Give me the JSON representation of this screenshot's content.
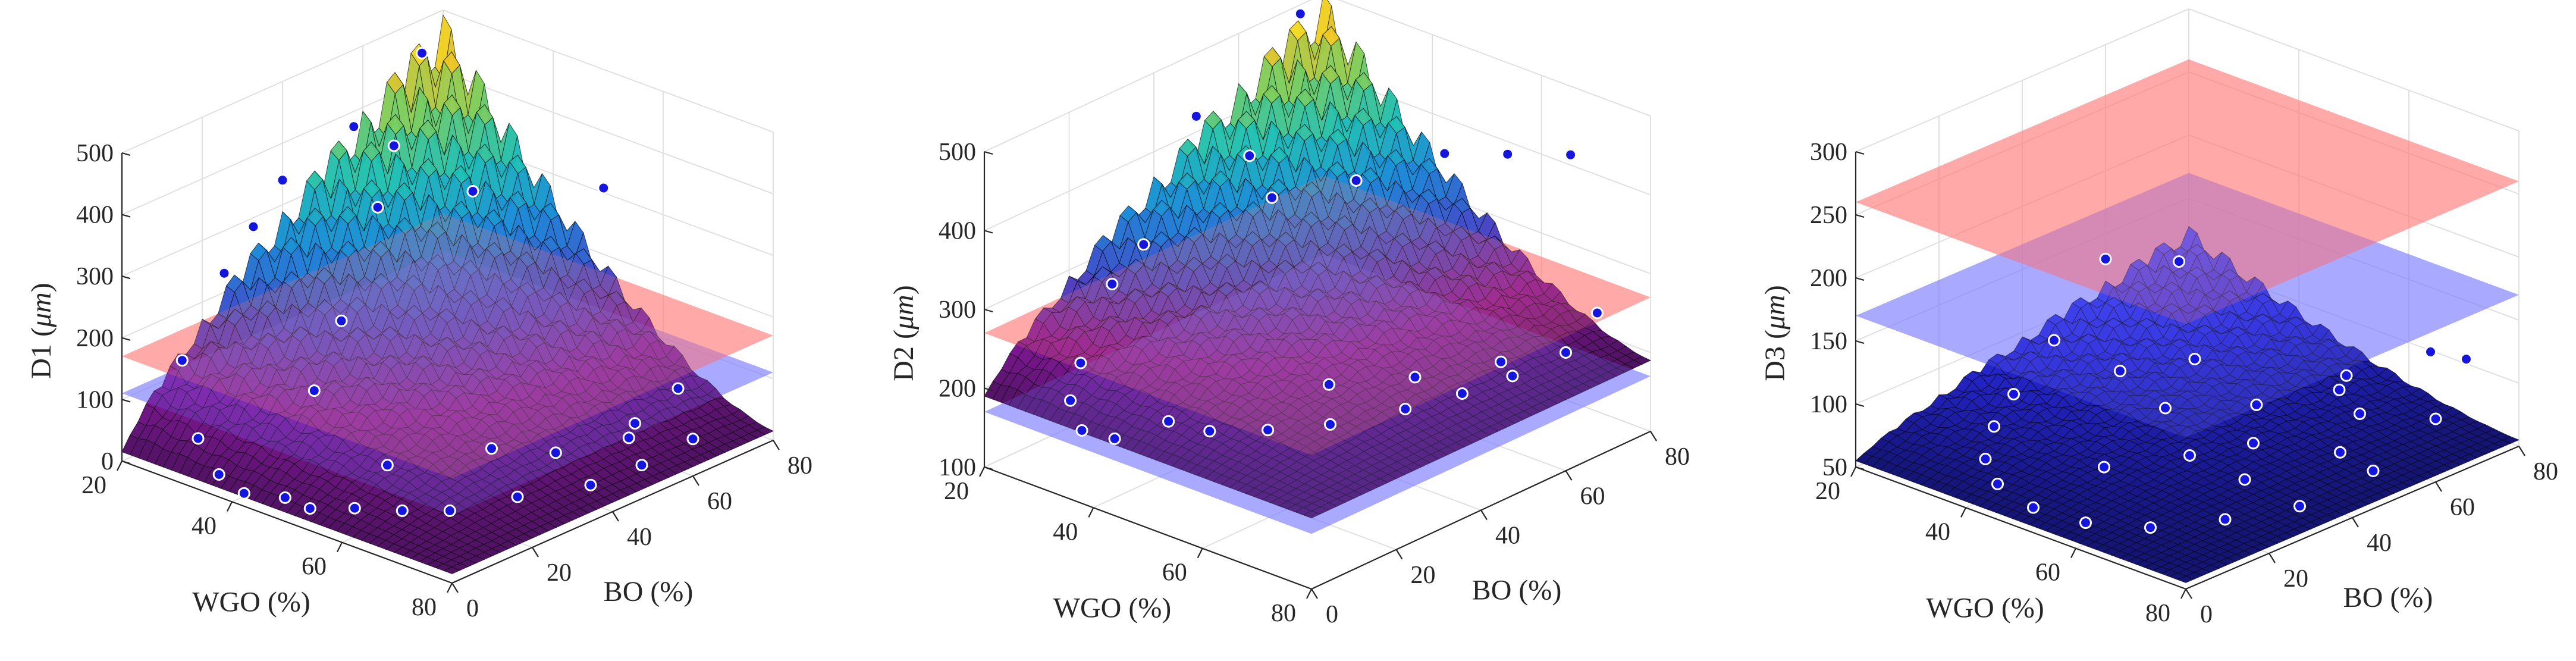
{
  "chart_data": [
    {
      "type": "surface",
      "zlabel_prefix": "D1 (",
      "zlabel_unit": "μm",
      "zlabel_suffix": ")",
      "xlabel": "WGO (%)",
      "ylabel": "BO (%)",
      "x_ticks": [
        20,
        40,
        60,
        80
      ],
      "y_ticks": [
        0,
        20,
        40,
        60,
        80
      ],
      "z_ticks": [
        0,
        100,
        200,
        300,
        400,
        500
      ],
      "zlim": [
        0,
        500
      ],
      "planes": [
        {
          "name": "red-plane",
          "z": 170,
          "color": "#ff7a7a"
        },
        {
          "name": "blue-plane",
          "z": 110,
          "color": "#7a7aff"
        }
      ],
      "colormap": "parula-purple",
      "surface": {
        "low": 15,
        "high": 480,
        "peak_y": 75,
        "spike": 35
      },
      "points": [
        [
          22,
          72,
          460
        ],
        [
          22,
          55,
          390
        ],
        [
          20,
          40,
          340
        ],
        [
          22,
          30,
          300
        ],
        [
          24,
          20,
          260
        ],
        [
          20,
          15,
          120
        ],
        [
          28,
          8,
          40
        ],
        [
          34,
          5,
          10
        ],
        [
          40,
          3,
          5
        ],
        [
          46,
          5,
          12
        ],
        [
          52,
          3,
          20
        ],
        [
          22,
          65,
          330
        ],
        [
          30,
          50,
          300
        ],
        [
          40,
          60,
          330
        ],
        [
          55,
          72,
          350
        ],
        [
          70,
          70,
          80
        ],
        [
          80,
          60,
          60
        ],
        [
          78,
          50,
          40
        ],
        [
          76,
          40,
          30
        ],
        [
          70,
          30,
          20
        ],
        [
          65,
          20,
          10
        ],
        [
          60,
          15,
          8
        ],
        [
          55,
          10,
          10
        ],
        [
          50,
          25,
          20
        ],
        [
          58,
          40,
          30
        ],
        [
          66,
          45,
          35
        ],
        [
          72,
          55,
          50
        ],
        [
          68,
          62,
          40
        ],
        [
          44,
          15,
          150
        ],
        [
          38,
          30,
          200
        ]
      ]
    },
    {
      "type": "surface",
      "zlabel_prefix": "D2 (",
      "zlabel_unit": "μm",
      "zlabel_suffix": ")",
      "xlabel": "WGO (%)",
      "ylabel": "BO (%)",
      "x_ticks": [
        20,
        40,
        60,
        80
      ],
      "y_ticks": [
        0,
        20,
        40,
        60,
        80
      ],
      "z_ticks": [
        100,
        200,
        300,
        400,
        500
      ],
      "zlim": [
        100,
        500
      ],
      "planes": [
        {
          "name": "red-plane",
          "z": 270,
          "color": "#ff7a7a"
        },
        {
          "name": "blue-plane",
          "z": 170,
          "color": "#7a7aff"
        }
      ],
      "colormap": "parula-purple",
      "surface": {
        "low": 190,
        "high": 490,
        "peak_y": 75,
        "spike": 25
      },
      "points": [
        [
          22,
          72,
          500
        ],
        [
          20,
          50,
          420
        ],
        [
          22,
          35,
          300
        ],
        [
          24,
          25,
          280
        ],
        [
          26,
          15,
          210
        ],
        [
          28,
          10,
          180
        ],
        [
          34,
          5,
          170
        ],
        [
          40,
          5,
          175
        ],
        [
          22,
          60,
          350
        ],
        [
          30,
          55,
          330
        ],
        [
          40,
          62,
          360
        ],
        [
          50,
          70,
          400
        ],
        [
          60,
          72,
          420
        ],
        [
          70,
          74,
          440
        ],
        [
          78,
          70,
          270
        ],
        [
          80,
          60,
          250
        ],
        [
          78,
          50,
          240
        ],
        [
          75,
          42,
          230
        ],
        [
          70,
          35,
          215
        ],
        [
          64,
          25,
          205
        ],
        [
          58,
          18,
          200
        ],
        [
          52,
          12,
          198
        ],
        [
          46,
          10,
          200
        ],
        [
          56,
          35,
          210
        ],
        [
          64,
          45,
          215
        ],
        [
          72,
          55,
          230
        ]
      ]
    },
    {
      "type": "surface",
      "zlabel_prefix": "D3 (",
      "zlabel_unit": "μm",
      "zlabel_suffix": ")",
      "xlabel": "WGO (%)",
      "ylabel": "BO (%)",
      "x_ticks": [
        20,
        40,
        60,
        80
      ],
      "y_ticks": [
        0,
        20,
        40,
        60,
        80
      ],
      "z_ticks": [
        50,
        100,
        150,
        200,
        250,
        300
      ],
      "zlim": [
        50,
        300
      ],
      "planes": [
        {
          "name": "red-plane",
          "z": 260,
          "color": "#ff7a7a"
        },
        {
          "name": "blue-plane",
          "z": 170,
          "color": "#7a7aff"
        }
      ],
      "colormap": "blue",
      "surface": {
        "low": 55,
        "high": 125,
        "peak_y": 70,
        "spike": 6
      },
      "points": [
        [
          22,
          75,
          110
        ],
        [
          20,
          60,
          130
        ],
        [
          22,
          45,
          90
        ],
        [
          26,
          30,
          75
        ],
        [
          30,
          20,
          70
        ],
        [
          36,
          10,
          68
        ],
        [
          42,
          5,
          65
        ],
        [
          50,
          3,
          62
        ],
        [
          58,
          5,
          60
        ],
        [
          66,
          10,
          62
        ],
        [
          72,
          20,
          64
        ],
        [
          78,
          30,
          70
        ],
        [
          80,
          45,
          80
        ],
        [
          80,
          60,
          100
        ],
        [
          78,
          70,
          130
        ],
        [
          70,
          72,
          120
        ],
        [
          60,
          65,
          95
        ],
        [
          55,
          50,
          85
        ],
        [
          62,
          40,
          80
        ],
        [
          68,
          30,
          75
        ],
        [
          74,
          45,
          85
        ],
        [
          70,
          55,
          95
        ],
        [
          64,
          58,
          100
        ],
        [
          58,
          30,
          78
        ],
        [
          50,
          20,
          70
        ],
        [
          46,
          40,
          82
        ],
        [
          40,
          55,
          90
        ],
        [
          34,
          45,
          85
        ]
      ]
    }
  ]
}
